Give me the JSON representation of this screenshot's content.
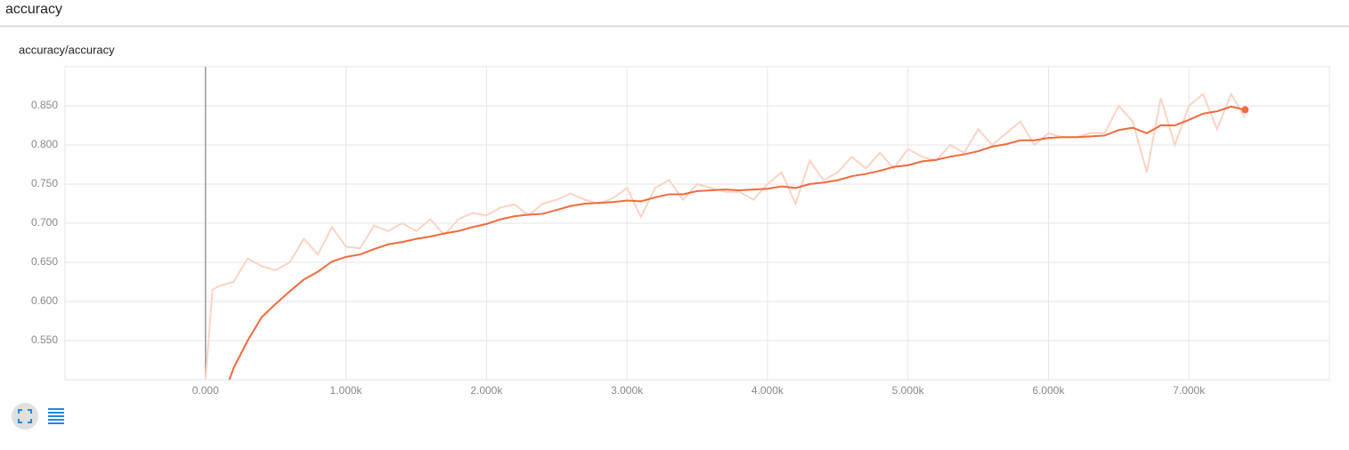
{
  "header": {
    "title": "accuracy"
  },
  "chart_data": {
    "type": "line",
    "title": "accuracy/accuracy",
    "xlim": [
      -1000,
      8000
    ],
    "xticks": [
      {
        "value": 0,
        "label": "0.000"
      },
      {
        "value": 1000,
        "label": "1.000k"
      },
      {
        "value": 2000,
        "label": "2.000k"
      },
      {
        "value": 3000,
        "label": "3.000k"
      },
      {
        "value": 4000,
        "label": "4.000k"
      },
      {
        "value": 5000,
        "label": "5.000k"
      },
      {
        "value": 6000,
        "label": "6.000k"
      },
      {
        "value": 7000,
        "label": "7.000k"
      }
    ],
    "ylim": [
      0.5,
      0.9
    ],
    "yticks": [
      {
        "value": 0.55,
        "label": "0.550"
      },
      {
        "value": 0.6,
        "label": "0.600"
      },
      {
        "value": 0.65,
        "label": "0.650"
      },
      {
        "value": 0.7,
        "label": "0.700"
      },
      {
        "value": 0.75,
        "label": "0.750"
      },
      {
        "value": 0.8,
        "label": "0.800"
      },
      {
        "value": 0.85,
        "label": "0.850"
      }
    ],
    "grid": true,
    "series": [
      {
        "color": "#fbd3c5",
        "x": [
          0,
          50,
          100,
          200,
          300,
          400,
          500,
          600,
          700,
          800,
          900,
          1000,
          1100,
          1200,
          1300,
          1400,
          1500,
          1600,
          1700,
          1800,
          1900,
          2000,
          2100,
          2200,
          2300,
          2400,
          2500,
          2600,
          2700,
          2800,
          2900,
          3000,
          3100,
          3200,
          3300,
          3400,
          3500,
          3600,
          3700,
          3800,
          3900,
          4000,
          4100,
          4200,
          4300,
          4400,
          4500,
          4600,
          4700,
          4800,
          4900,
          5000,
          5100,
          5200,
          5300,
          5400,
          5500,
          5600,
          5700,
          5800,
          5900,
          6000,
          6100,
          6200,
          6300,
          6400,
          6500,
          6600,
          6700,
          6800,
          6900,
          7000,
          7100,
          7200,
          7300,
          7400
        ],
        "values": [
          0.5,
          0.615,
          0.62,
          0.625,
          0.655,
          0.645,
          0.64,
          0.65,
          0.68,
          0.66,
          0.695,
          0.67,
          0.668,
          0.697,
          0.69,
          0.7,
          0.69,
          0.705,
          0.685,
          0.705,
          0.713,
          0.71,
          0.72,
          0.724,
          0.71,
          0.725,
          0.73,
          0.738,
          0.73,
          0.725,
          0.732,
          0.745,
          0.708,
          0.745,
          0.755,
          0.73,
          0.75,
          0.745,
          0.74,
          0.74,
          0.73,
          0.75,
          0.765,
          0.725,
          0.78,
          0.755,
          0.765,
          0.785,
          0.77,
          0.79,
          0.77,
          0.795,
          0.785,
          0.78,
          0.8,
          0.79,
          0.82,
          0.8,
          0.815,
          0.83,
          0.8,
          0.815,
          0.81,
          0.81,
          0.815,
          0.815,
          0.85,
          0.83,
          0.765,
          0.86,
          0.8,
          0.85,
          0.865,
          0.82,
          0.865,
          0.835
        ]
      },
      {
        "color": "#f06a3b",
        "x": [
          170,
          200,
          300,
          400,
          500,
          600,
          700,
          800,
          900,
          1000,
          1100,
          1200,
          1300,
          1400,
          1500,
          1600,
          1700,
          1800,
          1900,
          2000,
          2100,
          2200,
          2300,
          2400,
          2500,
          2600,
          2700,
          2800,
          2900,
          3000,
          3100,
          3200,
          3300,
          3400,
          3500,
          3600,
          3700,
          3800,
          3900,
          4000,
          4100,
          4200,
          4300,
          4400,
          4500,
          4600,
          4700,
          4800,
          4900,
          5000,
          5100,
          5200,
          5300,
          5400,
          5500,
          5600,
          5700,
          5800,
          5900,
          6000,
          6100,
          6200,
          6300,
          6400,
          6500,
          6600,
          6700,
          6800,
          6900,
          7000,
          7100,
          7200,
          7300,
          7400
        ],
        "values": [
          0.5,
          0.515,
          0.55,
          0.58,
          0.597,
          0.613,
          0.628,
          0.638,
          0.651,
          0.657,
          0.66,
          0.667,
          0.673,
          0.676,
          0.68,
          0.683,
          0.687,
          0.69,
          0.695,
          0.699,
          0.705,
          0.709,
          0.711,
          0.712,
          0.717,
          0.722,
          0.725,
          0.726,
          0.727,
          0.729,
          0.728,
          0.733,
          0.737,
          0.737,
          0.741,
          0.742,
          0.743,
          0.742,
          0.743,
          0.744,
          0.747,
          0.745,
          0.75,
          0.752,
          0.755,
          0.76,
          0.763,
          0.767,
          0.772,
          0.774,
          0.779,
          0.781,
          0.785,
          0.788,
          0.792,
          0.798,
          0.801,
          0.806,
          0.806,
          0.809,
          0.81,
          0.81,
          0.811,
          0.812,
          0.819,
          0.822,
          0.815,
          0.825,
          0.825,
          0.832,
          0.84,
          0.843,
          0.849,
          0.845
        ]
      }
    ]
  }
}
